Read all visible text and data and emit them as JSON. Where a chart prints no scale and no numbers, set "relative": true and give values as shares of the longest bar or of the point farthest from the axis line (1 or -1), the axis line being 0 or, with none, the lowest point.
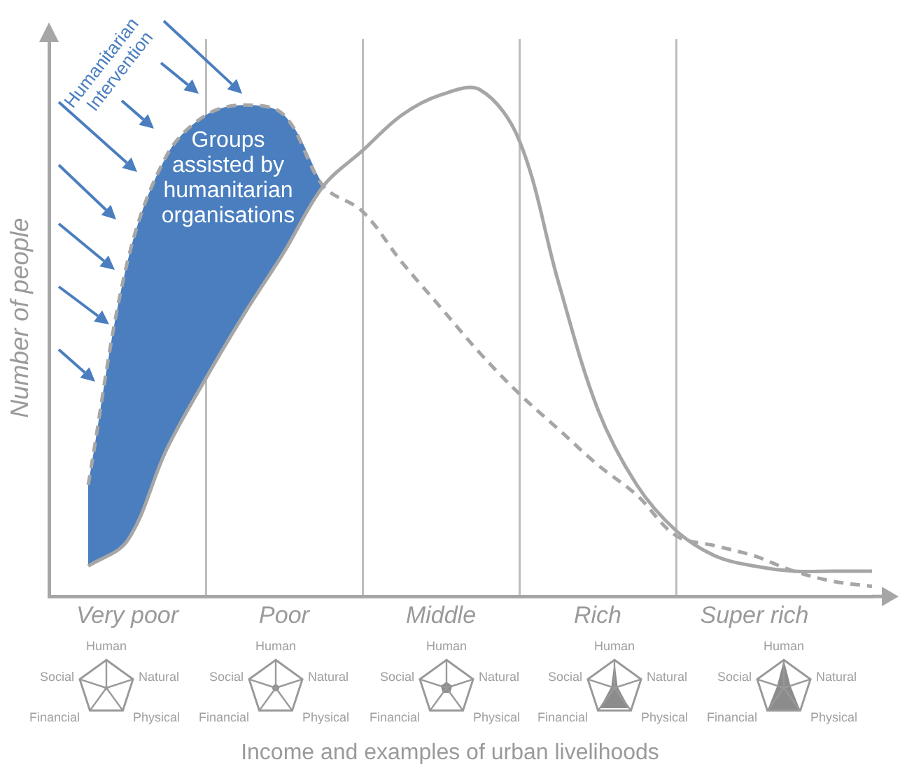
{
  "chart_data": {
    "type": "line",
    "relative": true,
    "ylabel": "Number of people",
    "categories": [
      null,
      null,
      "Very poor",
      null,
      null,
      null,
      "Poor",
      null,
      null,
      null,
      "Middle",
      null,
      null,
      null,
      "Rich",
      null,
      null,
      null,
      "Super rich",
      null,
      null,
      null
    ],
    "grid": "x",
    "marker": "none",
    "series": [
      {
        "type": "line",
        "color": "#a6a6a6",
        "line_style": "solid",
        "values": [
          null,
          0.06,
          0.11,
          0.29,
          0.43,
          0.56,
          0.68,
          0.81,
          0.88,
          0.95,
          0.99,
          1.0,
          0.9,
          0.62,
          0.37,
          0.22,
          0.13,
          0.08,
          0.06,
          0.05,
          0.05,
          0.05
        ]
      },
      {
        "type": "area",
        "color": "#4a7ebf",
        "values": [
          null,
          0.22,
          0.66,
          0.87,
          0.95,
          0.97,
          0.95,
          0.81,
          null,
          null,
          null,
          null,
          null,
          null,
          null,
          null,
          null,
          null,
          null,
          null,
          null,
          null
        ]
      },
      {
        "type": "line",
        "color": "#a6a6a6",
        "line_style": "dashed",
        "values": [
          null,
          0.22,
          0.66,
          0.87,
          0.95,
          0.97,
          0.95,
          0.81,
          0.76,
          0.66,
          0.57,
          0.48,
          0.4,
          0.33,
          0.26,
          0.2,
          0.12,
          0.1,
          0.08,
          0.05,
          0.03,
          0.02
        ]
      }
    ],
    "annotations": [
      "Groups assisted by humanitarian organisations",
      "Humanitarian Intervention",
      "Income and examples of urban livelihoods",
      "Human",
      "Natural",
      "Physical",
      "Financial",
      "Social",
      "Human",
      "Natural",
      "Physical",
      "Financial",
      "Social",
      "Human",
      "Natural",
      "Physical",
      "Financial",
      "Social",
      "Human",
      "Natural",
      "Physical",
      "Financial",
      "Social",
      "Human",
      "Natural",
      "Physical",
      "Financial",
      "Social"
    ]
  }
}
